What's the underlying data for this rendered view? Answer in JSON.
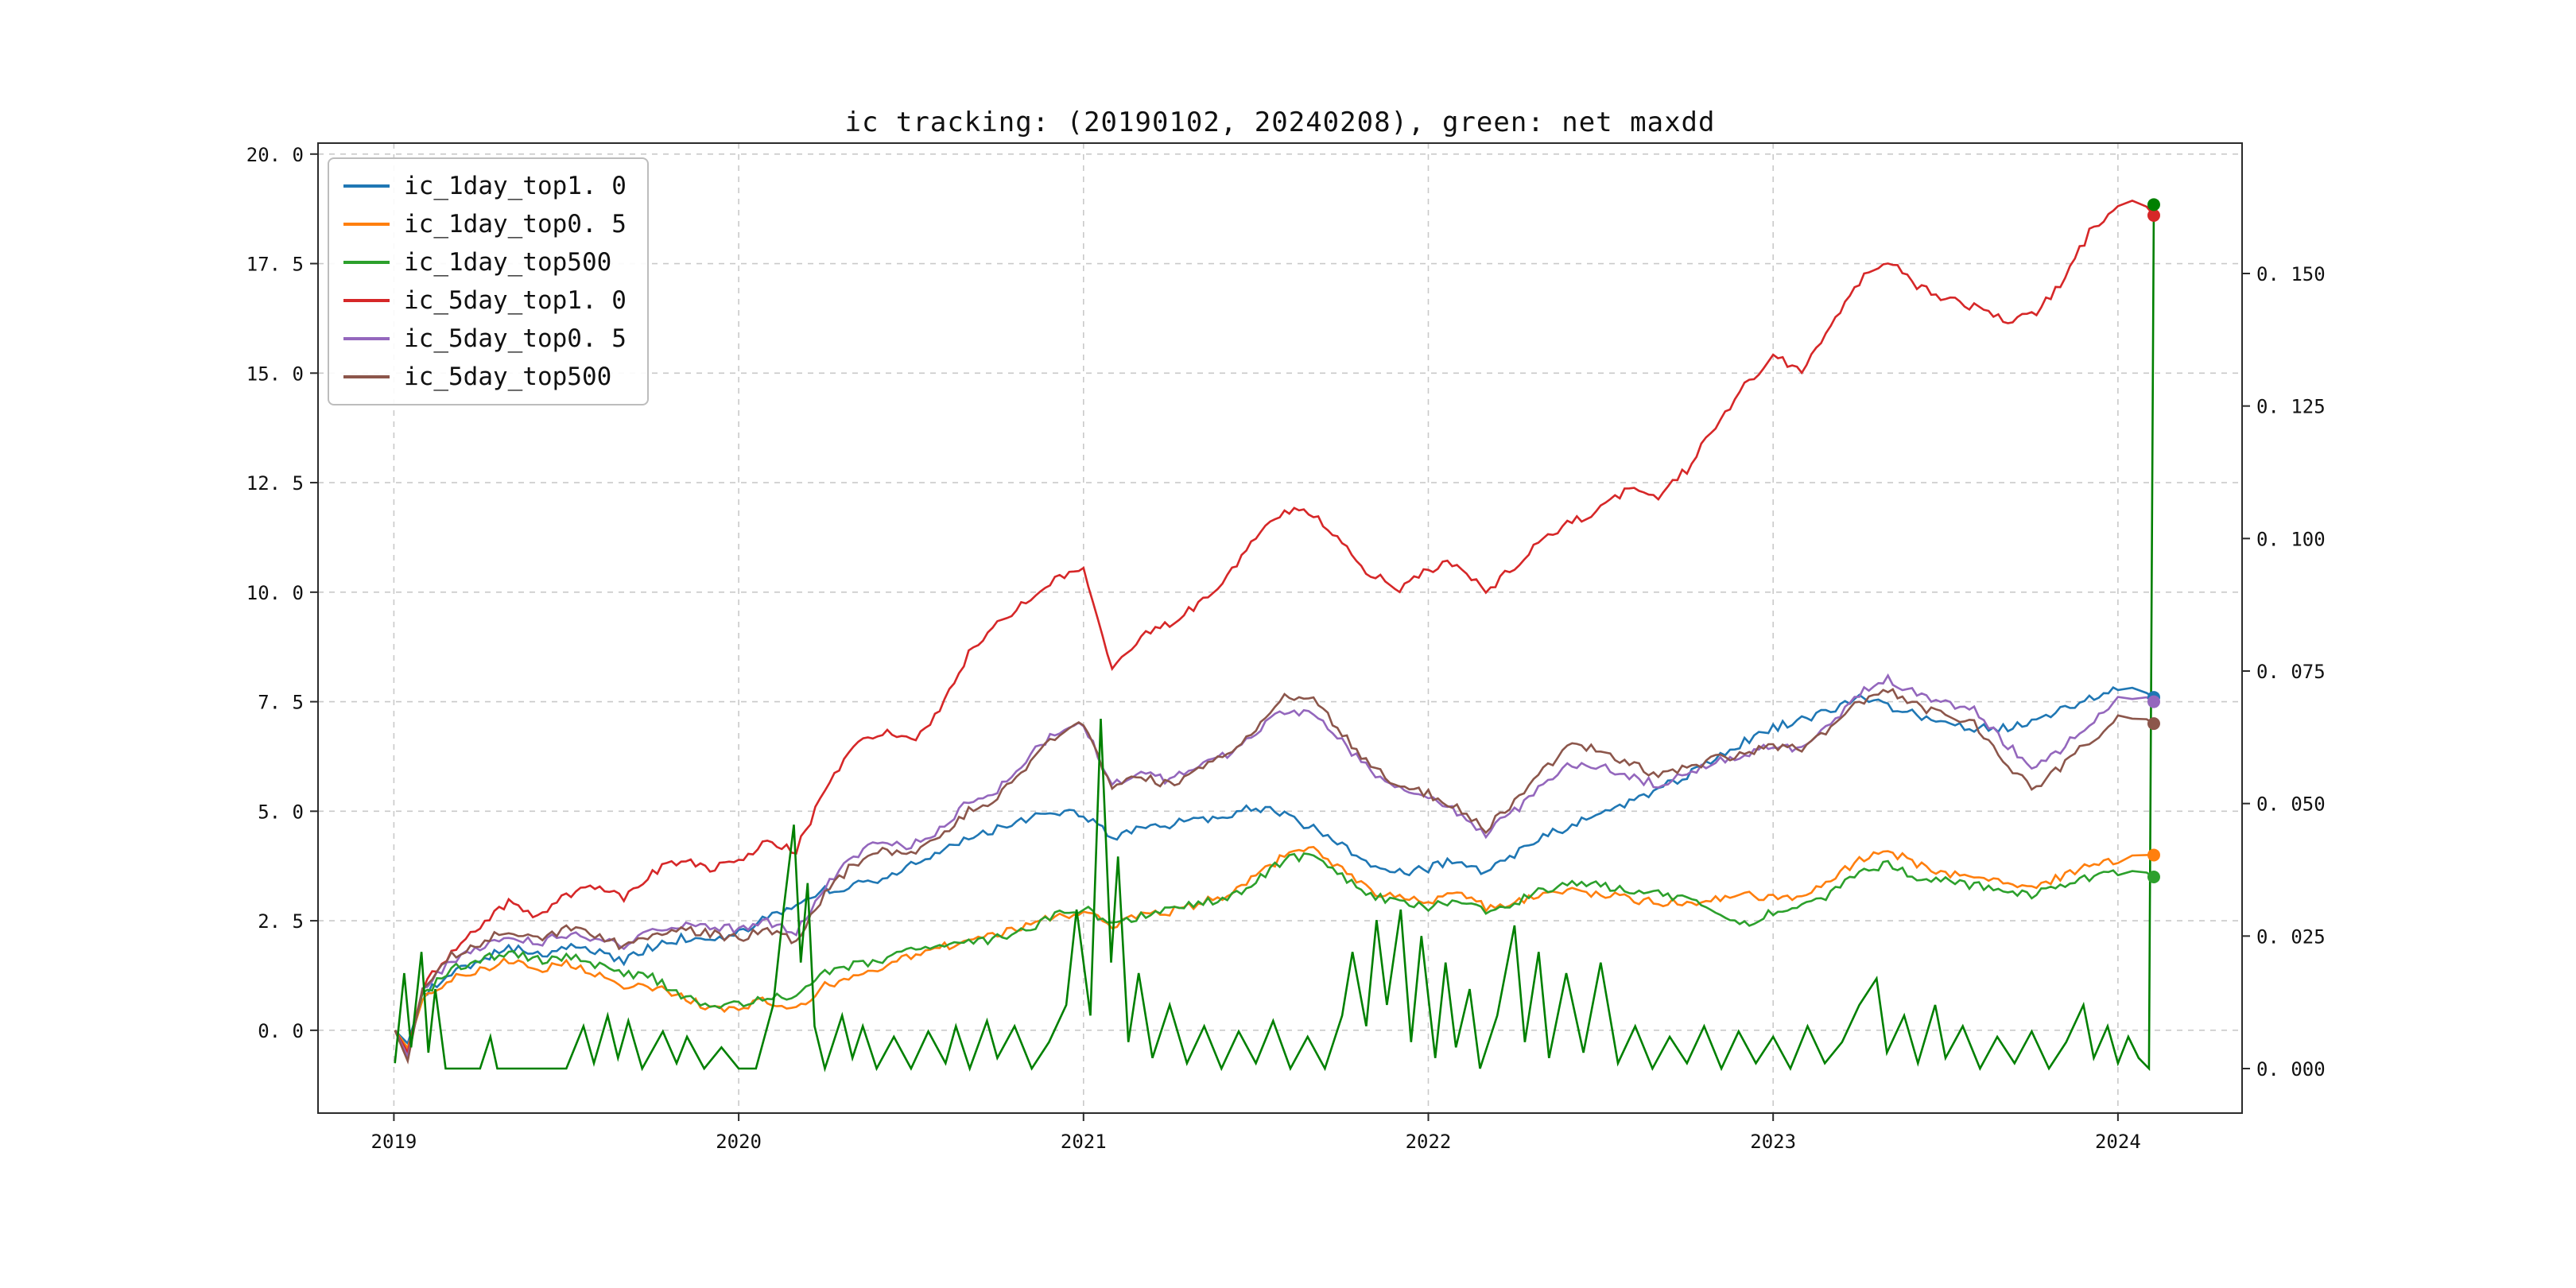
{
  "chart_data": {
    "type": "line",
    "title": "ic tracking: (20190102, 20240208), green: net maxdd",
    "x": {
      "axis_min": 2018.78,
      "axis_max": 2024.36,
      "ticks": [
        {
          "v": 2019,
          "label": "2019"
        },
        {
          "v": 2020,
          "label": "2020"
        },
        {
          "v": 2021,
          "label": "2021"
        },
        {
          "v": 2022,
          "label": "2022"
        },
        {
          "v": 2023,
          "label": "2023"
        },
        {
          "v": 2024,
          "label": "2024"
        }
      ]
    },
    "left_axis": {
      "min": -1.89,
      "max": 20.25,
      "ticks": [
        {
          "v": 20.0,
          "label": "20. 0"
        },
        {
          "v": 17.5,
          "label": "17. 5"
        },
        {
          "v": 15.0,
          "label": "15. 0"
        },
        {
          "v": 12.5,
          "label": "12. 5"
        },
        {
          "v": 10.0,
          "label": "10. 0"
        },
        {
          "v": 7.5,
          "label": "7. 5"
        },
        {
          "v": 5.0,
          "label": "5. 0"
        },
        {
          "v": 2.5,
          "label": "2. 5"
        },
        {
          "v": 0.0,
          "label": "0. 0"
        }
      ]
    },
    "right_axis": {
      "min": -0.0084,
      "max": 0.1746,
      "ticks": [
        {
          "v": 0.15,
          "label": "0. 150"
        },
        {
          "v": 0.125,
          "label": "0. 125"
        },
        {
          "v": 0.1,
          "label": "0. 100"
        },
        {
          "v": 0.075,
          "label": "0. 075"
        },
        {
          "v": 0.05,
          "label": "0. 050"
        },
        {
          "v": 0.025,
          "label": "0. 025"
        },
        {
          "v": 0.0,
          "label": "0. 000"
        }
      ]
    },
    "months": [
      2019.003,
      2019.04,
      2019.083,
      2019.167,
      2019.25,
      2019.333,
      2019.417,
      2019.5,
      2019.583,
      2019.667,
      2019.75,
      2019.833,
      2019.917,
      2020.0,
      2020.083,
      2020.167,
      2020.25,
      2020.333,
      2020.417,
      2020.5,
      2020.583,
      2020.667,
      2020.75,
      2020.833,
      2020.917,
      2021.0,
      2021.083,
      2021.167,
      2021.25,
      2021.333,
      2021.417,
      2021.5,
      2021.583,
      2021.667,
      2021.75,
      2021.833,
      2021.917,
      2022.0,
      2022.083,
      2022.167,
      2022.25,
      2022.333,
      2022.417,
      2022.5,
      2022.583,
      2022.667,
      2022.75,
      2022.833,
      2022.917,
      2023.0,
      2023.083,
      2023.167,
      2023.25,
      2023.333,
      2023.417,
      2023.5,
      2023.583,
      2023.667,
      2023.75,
      2023.833,
      2023.917,
      2024.0,
      2024.083,
      2024.104
    ],
    "series": [
      {
        "name": "ic_1day_top1. 0",
        "color": "#1f77b4",
        "axis": "left",
        "values": [
          0,
          -0.3,
          0.8,
          1.3,
          1.6,
          1.9,
          1.7,
          1.9,
          1.8,
          1.6,
          1.9,
          2.1,
          2.1,
          2.2,
          2.6,
          2.8,
          3.2,
          3.3,
          3.4,
          3.8,
          4.1,
          4.4,
          4.6,
          4.8,
          5.0,
          4.9,
          4.4,
          4.6,
          4.7,
          4.8,
          4.9,
          5.1,
          4.9,
          4.6,
          4.2,
          3.8,
          3.6,
          3.7,
          3.9,
          3.6,
          4.0,
          4.4,
          4.7,
          4.9,
          5.2,
          5.5,
          5.8,
          6.2,
          6.6,
          6.9,
          7.1,
          7.3,
          7.6,
          7.4,
          7.2,
          7.0,
          6.9,
          6.9,
          7.0,
          7.3,
          7.6,
          7.8,
          7.7,
          7.6
        ]
      },
      {
        "name": "ic_1day_top0. 5",
        "color": "#ff7f0e",
        "axis": "left",
        "values": [
          0,
          -0.4,
          0.7,
          1.2,
          1.4,
          1.6,
          1.4,
          1.5,
          1.3,
          1.0,
          1.0,
          0.8,
          0.5,
          0.5,
          0.7,
          0.5,
          1.0,
          1.2,
          1.4,
          1.7,
          1.9,
          2.0,
          2.2,
          2.4,
          2.6,
          2.7,
          2.4,
          2.6,
          2.7,
          2.9,
          3.1,
          3.5,
          4.0,
          4.1,
          3.7,
          3.2,
          3.0,
          2.9,
          3.1,
          2.8,
          2.9,
          3.1,
          3.2,
          3.1,
          3.0,
          2.9,
          2.9,
          3.0,
          3.1,
          3.0,
          3.1,
          3.4,
          3.9,
          4.1,
          3.8,
          3.6,
          3.5,
          3.4,
          3.3,
          3.5,
          3.8,
          3.9,
          4.0,
          4.0
        ]
      },
      {
        "name": "ic_1day_top500",
        "color": "#2ca02c",
        "axis": "left",
        "values": [
          0,
          -0.5,
          0.8,
          1.4,
          1.6,
          1.8,
          1.6,
          1.7,
          1.5,
          1.3,
          1.2,
          0.8,
          0.5,
          0.6,
          0.8,
          0.7,
          1.3,
          1.5,
          1.6,
          1.8,
          1.9,
          2.0,
          2.1,
          2.3,
          2.6,
          2.8,
          2.4,
          2.6,
          2.8,
          2.9,
          3.0,
          3.4,
          3.9,
          4.0,
          3.5,
          3.1,
          2.9,
          2.8,
          3.0,
          2.7,
          2.9,
          3.2,
          3.4,
          3.3,
          3.2,
          3.1,
          3.0,
          2.7,
          2.4,
          2.7,
          2.9,
          3.1,
          3.6,
          3.8,
          3.5,
          3.4,
          3.3,
          3.2,
          3.1,
          3.3,
          3.5,
          3.6,
          3.6,
          3.5
        ]
      },
      {
        "name": "ic_5day_top1. 0",
        "color": "#d62728",
        "axis": "left",
        "values": [
          0,
          -0.5,
          1.0,
          1.8,
          2.4,
          2.9,
          2.6,
          3.1,
          3.3,
          3.0,
          3.6,
          3.9,
          3.7,
          3.9,
          4.3,
          4.1,
          5.5,
          6.5,
          6.8,
          6.6,
          7.3,
          8.6,
          9.3,
          9.8,
          10.3,
          10.6,
          8.2,
          9.0,
          9.3,
          9.7,
          10.4,
          11.2,
          11.9,
          11.8,
          11.1,
          10.4,
          10.1,
          10.5,
          10.7,
          10.0,
          10.6,
          11.2,
          11.6,
          11.9,
          12.4,
          12.2,
          12.8,
          13.8,
          14.7,
          15.4,
          15.0,
          16.0,
          17.1,
          17.6,
          17.0,
          16.7,
          16.5,
          16.2,
          16.3,
          17.0,
          18.2,
          18.9,
          18.8,
          18.6
        ]
      },
      {
        "name": "ic_5day_top0. 5",
        "color": "#9467bd",
        "axis": "left",
        "values": [
          0,
          -0.6,
          0.9,
          1.6,
          1.9,
          2.2,
          2.0,
          2.2,
          2.1,
          1.9,
          2.3,
          2.4,
          2.4,
          2.3,
          2.5,
          2.2,
          3.3,
          4.0,
          4.3,
          4.2,
          4.6,
          5.2,
          5.5,
          6.2,
          6.8,
          7.0,
          5.6,
          5.9,
          5.7,
          6.0,
          6.3,
          6.8,
          7.3,
          7.2,
          6.6,
          5.9,
          5.5,
          5.3,
          5.0,
          4.5,
          5.0,
          5.6,
          6.1,
          6.0,
          5.8,
          5.6,
          5.9,
          6.1,
          6.3,
          6.5,
          6.4,
          7.0,
          7.7,
          8.0,
          7.7,
          7.5,
          7.3,
          6.6,
          6.0,
          6.4,
          7.0,
          7.6,
          7.6,
          7.5
        ]
      },
      {
        "name": "ic_5day_top500",
        "color": "#8c564b",
        "axis": "left",
        "values": [
          0,
          -0.7,
          1.0,
          1.7,
          2.0,
          2.3,
          2.1,
          2.3,
          2.2,
          1.9,
          2.2,
          2.3,
          2.2,
          2.1,
          2.3,
          2.0,
          3.1,
          3.8,
          4.1,
          4.0,
          4.4,
          5.0,
          5.3,
          6.0,
          6.7,
          7.0,
          5.5,
          5.8,
          5.6,
          5.9,
          6.3,
          6.9,
          7.6,
          7.5,
          6.8,
          6.0,
          5.6,
          5.4,
          5.1,
          4.6,
          5.2,
          5.9,
          6.5,
          6.4,
          6.1,
          5.8,
          6.0,
          6.2,
          6.3,
          6.5,
          6.4,
          6.9,
          7.5,
          7.8,
          7.4,
          7.2,
          7.0,
          6.2,
          5.5,
          6.0,
          6.6,
          7.1,
          7.1,
          7.0
        ]
      }
    ],
    "maxdd": {
      "name": "net maxdd",
      "color": "#008000",
      "axis": "right",
      "points": [
        [
          2019.003,
          0.001
        ],
        [
          2019.03,
          0.018
        ],
        [
          2019.05,
          0.004
        ],
        [
          2019.08,
          0.022
        ],
        [
          2019.1,
          0.003
        ],
        [
          2019.12,
          0.015
        ],
        [
          2019.15,
          0.0
        ],
        [
          2019.25,
          0.0
        ],
        [
          2019.28,
          0.006
        ],
        [
          2019.3,
          0.0
        ],
        [
          2019.5,
          0.0
        ],
        [
          2019.55,
          0.008
        ],
        [
          2019.58,
          0.001
        ],
        [
          2019.62,
          0.01
        ],
        [
          2019.65,
          0.002
        ],
        [
          2019.68,
          0.009
        ],
        [
          2019.72,
          0.0
        ],
        [
          2019.78,
          0.007
        ],
        [
          2019.82,
          0.001
        ],
        [
          2019.85,
          0.006
        ],
        [
          2019.9,
          0.0
        ],
        [
          2019.95,
          0.004
        ],
        [
          2020.0,
          0.0
        ],
        [
          2020.05,
          0.0
        ],
        [
          2020.1,
          0.012
        ],
        [
          2020.13,
          0.03
        ],
        [
          2020.16,
          0.046
        ],
        [
          2020.18,
          0.02
        ],
        [
          2020.2,
          0.035
        ],
        [
          2020.22,
          0.008
        ],
        [
          2020.25,
          0.0
        ],
        [
          2020.3,
          0.01
        ],
        [
          2020.33,
          0.002
        ],
        [
          2020.36,
          0.008
        ],
        [
          2020.4,
          0.0
        ],
        [
          2020.45,
          0.006
        ],
        [
          2020.5,
          0.0
        ],
        [
          2020.55,
          0.007
        ],
        [
          2020.6,
          0.001
        ],
        [
          2020.63,
          0.008
        ],
        [
          2020.67,
          0.0
        ],
        [
          2020.72,
          0.009
        ],
        [
          2020.75,
          0.002
        ],
        [
          2020.8,
          0.008
        ],
        [
          2020.85,
          0.0
        ],
        [
          2020.9,
          0.005
        ],
        [
          2020.95,
          0.012
        ],
        [
          2020.98,
          0.03
        ],
        [
          2021.02,
          0.01
        ],
        [
          2021.05,
          0.066
        ],
        [
          2021.08,
          0.02
        ],
        [
          2021.1,
          0.04
        ],
        [
          2021.13,
          0.005
        ],
        [
          2021.16,
          0.018
        ],
        [
          2021.2,
          0.002
        ],
        [
          2021.25,
          0.012
        ],
        [
          2021.3,
          0.001
        ],
        [
          2021.35,
          0.008
        ],
        [
          2021.4,
          0.0
        ],
        [
          2021.45,
          0.007
        ],
        [
          2021.5,
          0.001
        ],
        [
          2021.55,
          0.009
        ],
        [
          2021.6,
          0.0
        ],
        [
          2021.65,
          0.006
        ],
        [
          2021.7,
          0.0
        ],
        [
          2021.75,
          0.01
        ],
        [
          2021.78,
          0.022
        ],
        [
          2021.82,
          0.008
        ],
        [
          2021.85,
          0.028
        ],
        [
          2021.88,
          0.012
        ],
        [
          2021.92,
          0.03
        ],
        [
          2021.95,
          0.005
        ],
        [
          2021.98,
          0.025
        ],
        [
          2022.02,
          0.002
        ],
        [
          2022.05,
          0.02
        ],
        [
          2022.08,
          0.004
        ],
        [
          2022.12,
          0.015
        ],
        [
          2022.15,
          0.0
        ],
        [
          2022.2,
          0.01
        ],
        [
          2022.25,
          0.027
        ],
        [
          2022.28,
          0.005
        ],
        [
          2022.32,
          0.022
        ],
        [
          2022.35,
          0.002
        ],
        [
          2022.4,
          0.018
        ],
        [
          2022.45,
          0.003
        ],
        [
          2022.5,
          0.02
        ],
        [
          2022.55,
          0.001
        ],
        [
          2022.6,
          0.008
        ],
        [
          2022.65,
          0.0
        ],
        [
          2022.7,
          0.006
        ],
        [
          2022.75,
          0.001
        ],
        [
          2022.8,
          0.008
        ],
        [
          2022.85,
          0.0
        ],
        [
          2022.9,
          0.007
        ],
        [
          2022.95,
          0.001
        ],
        [
          2023.0,
          0.006
        ],
        [
          2023.05,
          0.0
        ],
        [
          2023.1,
          0.008
        ],
        [
          2023.15,
          0.001
        ],
        [
          2023.2,
          0.005
        ],
        [
          2023.25,
          0.012
        ],
        [
          2023.3,
          0.017
        ],
        [
          2023.33,
          0.003
        ],
        [
          2023.38,
          0.01
        ],
        [
          2023.42,
          0.001
        ],
        [
          2023.47,
          0.012
        ],
        [
          2023.5,
          0.002
        ],
        [
          2023.55,
          0.008
        ],
        [
          2023.6,
          0.0
        ],
        [
          2023.65,
          0.006
        ],
        [
          2023.7,
          0.001
        ],
        [
          2023.75,
          0.007
        ],
        [
          2023.8,
          0.0
        ],
        [
          2023.85,
          0.005
        ],
        [
          2023.9,
          0.012
        ],
        [
          2023.93,
          0.002
        ],
        [
          2023.97,
          0.008
        ],
        [
          2024.0,
          0.001
        ],
        [
          2024.03,
          0.006
        ],
        [
          2024.06,
          0.002
        ],
        [
          2024.09,
          0.0
        ],
        [
          2024.104,
          0.163
        ]
      ]
    },
    "end_dots": [
      {
        "color": "#1f77b4",
        "axis": "left",
        "t": 2024.104,
        "v": 7.6
      },
      {
        "color": "#ff7f0e",
        "axis": "left",
        "t": 2024.104,
        "v": 4.0
      },
      {
        "color": "#2ca02c",
        "axis": "left",
        "t": 2024.104,
        "v": 3.5
      },
      {
        "color": "#d62728",
        "axis": "left",
        "t": 2024.104,
        "v": 18.6
      },
      {
        "color": "#9467bd",
        "axis": "left",
        "t": 2024.104,
        "v": 7.5
      },
      {
        "color": "#8c564b",
        "axis": "left",
        "t": 2024.104,
        "v": 7.0
      },
      {
        "color": "#008000",
        "axis": "right",
        "t": 2024.104,
        "v": 0.163
      }
    ]
  }
}
